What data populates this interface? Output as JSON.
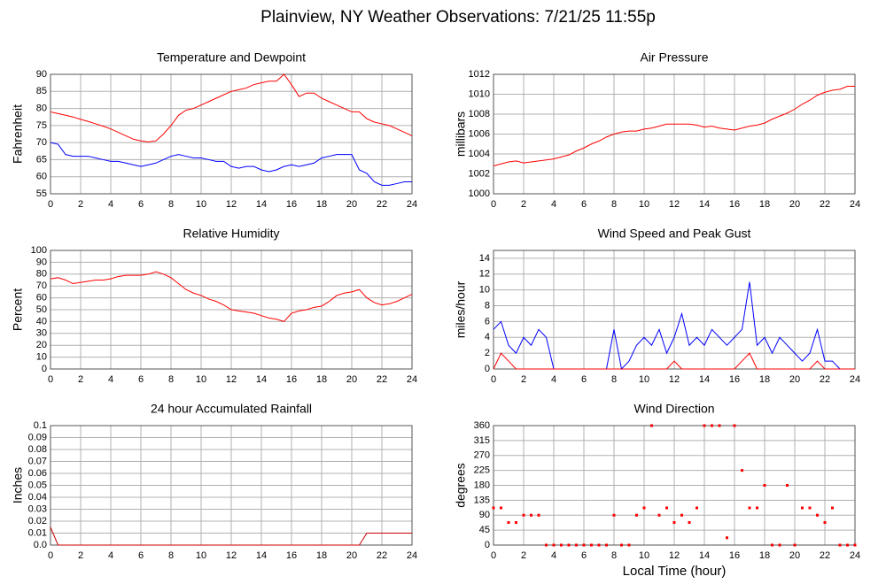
{
  "title": "Plainview, NY Weather Observations: 7/21/25 11:55p",
  "chart_data": [
    {
      "type": "line",
      "title": "Temperature and Dewpoint",
      "ylabel": "Fahrenheit",
      "x": [
        0,
        0.5,
        1,
        1.5,
        2,
        2.5,
        3,
        3.5,
        4,
        4.5,
        5,
        5.5,
        6,
        6.5,
        7,
        7.5,
        8,
        8.5,
        9,
        9.5,
        10,
        10.5,
        11,
        11.5,
        12,
        12.5,
        13,
        13.5,
        14,
        14.5,
        15,
        15.5,
        16,
        16.5,
        17,
        17.5,
        18,
        18.5,
        19,
        19.5,
        20,
        20.5,
        21,
        21.5,
        22,
        22.5,
        23,
        23.5,
        24
      ],
      "series": [
        {
          "color": "#ff0000",
          "values": [
            79,
            78.5,
            78,
            77.5,
            76.8,
            76.2,
            75.5,
            74.8,
            74,
            73,
            72,
            71,
            70.5,
            70.2,
            70.5,
            72.5,
            75,
            78,
            79.5,
            80,
            81,
            82,
            83,
            84,
            85,
            85.5,
            86,
            87,
            87.5,
            88,
            88,
            90,
            87,
            83.5,
            84.5,
            84.5,
            83,
            82,
            81,
            80,
            79,
            79,
            77,
            76,
            75.5,
            75,
            74,
            73,
            72
          ]
        },
        {
          "color": "#0000ff",
          "values": [
            70,
            69.5,
            66.5,
            66,
            66,
            66,
            65.5,
            65,
            64.5,
            64.5,
            64,
            63.5,
            63,
            63.5,
            64,
            65,
            66,
            66.5,
            66,
            65.5,
            65.5,
            65,
            64.5,
            64.5,
            63,
            62.5,
            63,
            63,
            62,
            61.5,
            62,
            63,
            63.5,
            63,
            63.5,
            64,
            65.5,
            66,
            66.5,
            66.5,
            66.5,
            62,
            61,
            58.5,
            57.5,
            57.5,
            58,
            58.5,
            58.5
          ]
        }
      ],
      "xlim": [
        0,
        24
      ],
      "ylim": [
        55,
        90
      ],
      "xticks": [
        0,
        2,
        4,
        6,
        8,
        10,
        12,
        14,
        16,
        18,
        20,
        22,
        24
      ],
      "yticks": [
        55,
        60,
        65,
        70,
        75,
        80,
        85,
        90
      ],
      "grid": true
    },
    {
      "type": "line",
      "title": "Air Pressure",
      "ylabel": "millibars",
      "x": [
        0,
        0.5,
        1,
        1.5,
        2,
        2.5,
        3,
        3.5,
        4,
        4.5,
        5,
        5.5,
        6,
        6.5,
        7,
        7.5,
        8,
        8.5,
        9,
        9.5,
        10,
        10.5,
        11,
        11.5,
        12,
        12.5,
        13,
        13.5,
        14,
        14.5,
        15,
        15.5,
        16,
        16.5,
        17,
        17.5,
        18,
        18.5,
        19,
        19.5,
        20,
        20.5,
        21,
        21.5,
        22,
        22.5,
        23,
        23.5,
        24
      ],
      "series": [
        {
          "color": "#ff0000",
          "values": [
            1002.8,
            1003.0,
            1003.2,
            1003.3,
            1003.1,
            1003.2,
            1003.3,
            1003.4,
            1003.5,
            1003.7,
            1003.9,
            1004.3,
            1004.6,
            1005.0,
            1005.3,
            1005.7,
            1006.0,
            1006.2,
            1006.3,
            1006.3,
            1006.5,
            1006.6,
            1006.8,
            1007.0,
            1007.0,
            1007.0,
            1007.0,
            1006.9,
            1006.7,
            1006.8,
            1006.6,
            1006.5,
            1006.4,
            1006.6,
            1006.8,
            1006.9,
            1007.1,
            1007.5,
            1007.8,
            1008.1,
            1008.5,
            1009.0,
            1009.4,
            1009.9,
            1010.2,
            1010.4,
            1010.5,
            1010.8,
            1010.8
          ]
        }
      ],
      "xlim": [
        0,
        24
      ],
      "ylim": [
        1000,
        1012
      ],
      "xticks": [
        0,
        2,
        4,
        6,
        8,
        10,
        12,
        14,
        16,
        18,
        20,
        22,
        24
      ],
      "yticks": [
        1000,
        1002,
        1004,
        1006,
        1008,
        1010,
        1012
      ],
      "grid": true
    },
    {
      "type": "line",
      "title": "Relative Humidity",
      "ylabel": "Percent",
      "x": [
        0,
        0.5,
        1,
        1.5,
        2,
        2.5,
        3,
        3.5,
        4,
        4.5,
        5,
        5.5,
        6,
        6.5,
        7,
        7.5,
        8,
        8.5,
        9,
        9.5,
        10,
        10.5,
        11,
        11.5,
        12,
        12.5,
        13,
        13.5,
        14,
        14.5,
        15,
        15.5,
        16,
        16.5,
        17,
        17.5,
        18,
        18.5,
        19,
        19.5,
        20,
        20.5,
        21,
        21.5,
        22,
        22.5,
        23,
        23.5,
        24
      ],
      "series": [
        {
          "color": "#ff0000",
          "values": [
            76,
            77,
            75,
            72,
            73,
            74,
            75,
            75,
            76,
            78,
            79,
            79,
            79,
            80,
            82,
            80,
            77,
            72,
            67,
            64,
            62,
            59,
            57,
            54,
            50,
            49,
            48,
            47,
            45,
            43,
            42,
            40,
            47,
            49,
            50,
            52,
            53,
            57,
            62,
            64,
            65,
            67,
            60,
            56,
            54,
            55,
            57,
            60,
            63
          ]
        }
      ],
      "xlim": [
        0,
        24
      ],
      "ylim": [
        0,
        100
      ],
      "xticks": [
        0,
        2,
        4,
        6,
        8,
        10,
        12,
        14,
        16,
        18,
        20,
        22,
        24
      ],
      "yticks": [
        0,
        10,
        20,
        30,
        40,
        50,
        60,
        70,
        80,
        90,
        100
      ],
      "grid": true
    },
    {
      "type": "line",
      "title": "Wind Speed and Peak Gust",
      "ylabel": "miles/hour",
      "x": [
        0,
        0.5,
        1,
        1.5,
        2,
        2.5,
        3,
        3.5,
        4,
        4.5,
        5,
        5.5,
        6,
        6.5,
        7,
        7.5,
        8,
        8.5,
        9,
        9.5,
        10,
        10.5,
        11,
        11.5,
        12,
        12.5,
        13,
        13.5,
        14,
        14.5,
        15,
        15.5,
        16,
        16.5,
        17,
        17.5,
        18,
        18.5,
        19,
        19.5,
        20,
        20.5,
        21,
        21.5,
        22,
        22.5,
        23,
        23.5,
        24
      ],
      "series": [
        {
          "color": "#0000ff",
          "values": [
            5,
            6,
            3,
            2,
            4,
            3,
            5,
            4,
            0,
            0,
            0,
            0,
            0,
            0,
            0,
            0,
            5,
            0,
            1,
            3,
            4,
            3,
            5,
            2,
            4,
            7,
            3,
            4,
            3,
            5,
            4,
            3,
            4,
            5,
            11,
            3,
            4,
            2,
            4,
            3,
            2,
            1,
            2,
            5,
            1,
            1,
            0,
            0,
            0
          ]
        },
        {
          "color": "#ff0000",
          "values": [
            0,
            2,
            1,
            0,
            0,
            0,
            0,
            0,
            0,
            0,
            0,
            0,
            0,
            0,
            0,
            0,
            0,
            0,
            0,
            0,
            0,
            0,
            0,
            0,
            1,
            0,
            0,
            0,
            0,
            0,
            0,
            0,
            0,
            1,
            2,
            0,
            0,
            0,
            0,
            0,
            0,
            0,
            0,
            1,
            0,
            0,
            0,
            0,
            0
          ]
        }
      ],
      "xlim": [
        0,
        24
      ],
      "ylim": [
        0,
        15
      ],
      "xticks": [
        0,
        2,
        4,
        6,
        8,
        10,
        12,
        14,
        16,
        18,
        20,
        22,
        24
      ],
      "yticks": [
        0,
        2,
        4,
        6,
        8,
        10,
        12,
        14
      ],
      "grid": true
    },
    {
      "type": "line",
      "title": "24 hour Accumulated Rainfall",
      "ylabel": "Inches",
      "x": [
        0,
        0.5,
        1,
        1.5,
        2,
        2.5,
        3,
        3.5,
        4,
        4.5,
        5,
        5.5,
        6,
        6.5,
        7,
        7.5,
        8,
        8.5,
        9,
        9.5,
        10,
        10.5,
        11,
        11.5,
        12,
        12.5,
        13,
        13.5,
        14,
        14.5,
        15,
        15.5,
        16,
        16.5,
        17,
        17.5,
        18,
        18.5,
        19,
        19.5,
        20,
        20.5,
        21,
        21.5,
        22,
        22.5,
        23,
        23.5,
        24
      ],
      "series": [
        {
          "color": "#cc0000",
          "values": [
            0.015,
            0,
            0,
            0,
            0,
            0,
            0,
            0,
            0,
            0,
            0,
            0,
            0,
            0,
            0,
            0,
            0,
            0,
            0,
            0,
            0,
            0,
            0,
            0,
            0,
            0,
            0,
            0,
            0,
            0,
            0,
            0,
            0,
            0,
            0,
            0,
            0,
            0,
            0,
            0,
            0,
            0,
            0.01,
            0.01,
            0.01,
            0.01,
            0.01,
            0.01,
            0.01
          ]
        }
      ],
      "xlim": [
        0,
        24
      ],
      "ylim": [
        0,
        0.1
      ],
      "xticks": [
        0,
        2,
        4,
        6,
        8,
        10,
        12,
        14,
        16,
        18,
        20,
        22,
        24
      ],
      "yticks": [
        {
          "value": 0,
          "label": "0.0"
        },
        0.01,
        0.02,
        0.03,
        0.04,
        0.05,
        0.06,
        0.07,
        0.08,
        0.09,
        0.1
      ],
      "grid": true
    },
    {
      "type": "scatter",
      "title": "Wind Direction",
      "ylabel": "degrees",
      "xlabel": "Local Time (hour)",
      "x": [
        0,
        0.5,
        1,
        1.5,
        2,
        2.5,
        3,
        3.5,
        4,
        4.5,
        5,
        5.5,
        6,
        6.5,
        7,
        7.5,
        8,
        8.5,
        9,
        9.5,
        10,
        10.5,
        11,
        11.5,
        12,
        12.5,
        13,
        13.5,
        14,
        14.5,
        15,
        15.5,
        16,
        16.5,
        17,
        17.5,
        18,
        18.5,
        19,
        19.5,
        20,
        20.5,
        21,
        21.5,
        22,
        22.5,
        23,
        23.5,
        24
      ],
      "series": [
        {
          "color": "#ff0000",
          "values": [
            112,
            112,
            68,
            68,
            90,
            90,
            90,
            0,
            0,
            0,
            0,
            0,
            0,
            0,
            0,
            0,
            90,
            0,
            0,
            90,
            112,
            360,
            90,
            112,
            68,
            90,
            68,
            112,
            360,
            360,
            360,
            22,
            360,
            225,
            112,
            112,
            180,
            0,
            0,
            180,
            0,
            112,
            112,
            90,
            68,
            112,
            0,
            0,
            0
          ]
        }
      ],
      "xlim": [
        0,
        24
      ],
      "ylim": [
        0,
        360
      ],
      "xticks": [
        0,
        2,
        4,
        6,
        8,
        10,
        12,
        14,
        16,
        18,
        20,
        22,
        24
      ],
      "yticks": [
        0,
        45,
        90,
        135,
        180,
        225,
        270,
        315,
        360
      ],
      "grid": true
    }
  ]
}
